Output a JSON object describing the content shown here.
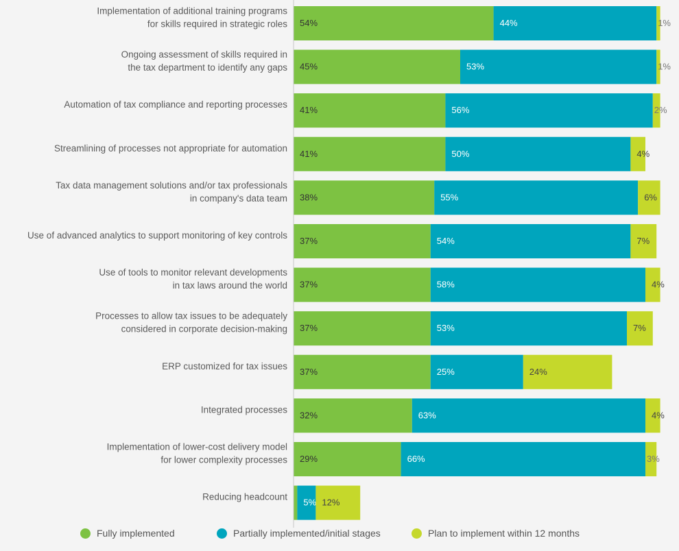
{
  "chart_data": {
    "type": "bar",
    "orientation": "horizontal",
    "stacked": true,
    "categories": [
      [
        "Implementation of additional training programs",
        "for skills required in strategic roles"
      ],
      [
        "Ongoing assessment of skills required in",
        "the tax department to identify any gaps"
      ],
      [
        "Automation of tax compliance and reporting processes"
      ],
      [
        "Streamlining of processes not appropriate for automation"
      ],
      [
        "Tax data management solutions and/or tax professionals",
        "in company's data team"
      ],
      [
        "Use of advanced analytics to support monitoring of key controls"
      ],
      [
        "Use of tools to monitor relevant developments",
        "in tax laws around the world"
      ],
      [
        "Processes to allow tax issues to be adequately",
        "considered in corporate decision-making"
      ],
      [
        "ERP customized for tax issues"
      ],
      [
        "Integrated processes"
      ],
      [
        "Implementation of lower-cost delivery model",
        "for lower complexity processes"
      ],
      [
        "Reducing headcount"
      ]
    ],
    "series": [
      {
        "name": "Fully implemented",
        "color": "#7dc242",
        "values": [
          54,
          45,
          41,
          41,
          38,
          37,
          37,
          37,
          37,
          32,
          29,
          1
        ]
      },
      {
        "name": "Partially implemented/initial stages",
        "color": "#00a5bd",
        "values": [
          44,
          53,
          56,
          50,
          55,
          54,
          58,
          53,
          25,
          63,
          66,
          5
        ]
      },
      {
        "name": "Plan to implement within 12 months",
        "color": "#c5d82b",
        "values": [
          1,
          1,
          2,
          4,
          6,
          7,
          4,
          7,
          24,
          4,
          3,
          12
        ]
      }
    ],
    "value_suffix": "%",
    "xlim": [
      0,
      100
    ],
    "legend_position": "bottom"
  }
}
